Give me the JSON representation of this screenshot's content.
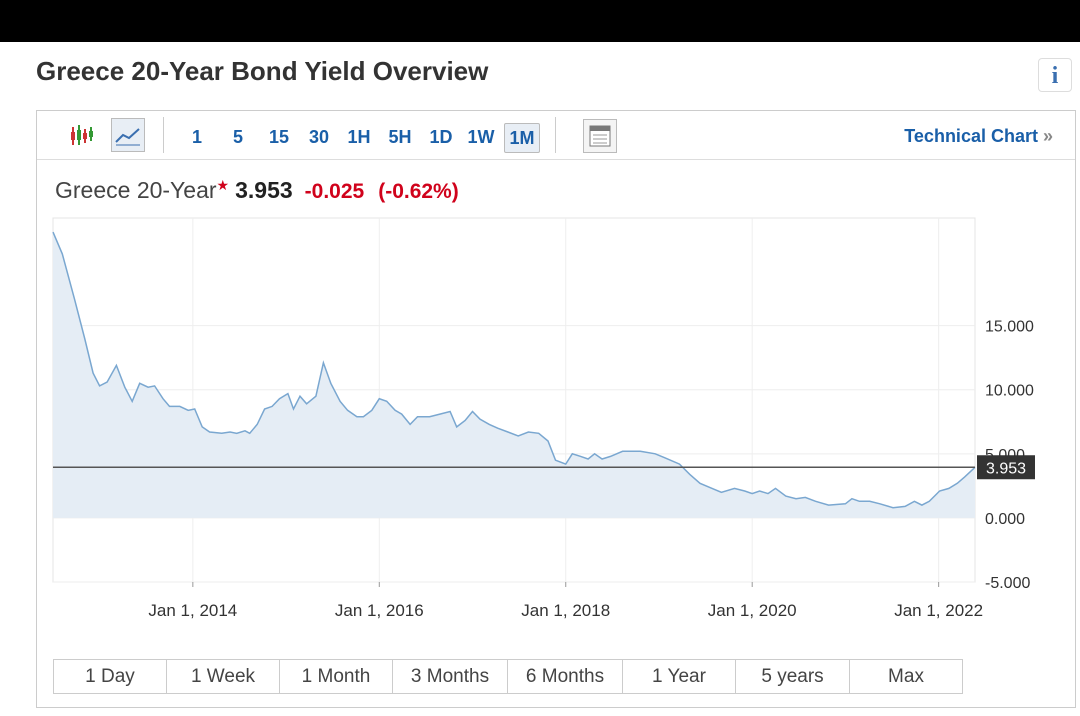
{
  "header": {
    "title": "Greece 20-Year Bond Yield Overview"
  },
  "toolbar": {
    "intervals": [
      "1",
      "5",
      "15",
      "30",
      "1H",
      "5H",
      "1D",
      "1W",
      "1M"
    ],
    "selected": "1M",
    "technical_link": "Technical Chart",
    "technical_arrow": "»"
  },
  "quote": {
    "name": "Greece 20-Year",
    "price": 3.953,
    "change": "-0.025",
    "change_pct": "(-0.62%)"
  },
  "chart_data": {
    "type": "area",
    "color": "#7aa7d0",
    "x": [
      2012.5,
      2012.6,
      2012.73,
      2012.84,
      2012.93,
      2013.0,
      2013.08,
      2013.18,
      2013.27,
      2013.35,
      2013.43,
      2013.52,
      2013.59,
      2013.68,
      2013.75,
      2013.86,
      2013.95,
      2014.02,
      2014.1,
      2014.18,
      2014.31,
      2014.4,
      2014.47,
      2014.56,
      2014.61,
      2014.69,
      2014.77,
      2014.85,
      2014.93,
      2015.02,
      2015.08,
      2015.15,
      2015.22,
      2015.32,
      2015.4,
      2015.48,
      2015.58,
      2015.66,
      2015.76,
      2015.83,
      2015.92,
      2016.0,
      2016.08,
      2016.17,
      2016.24,
      2016.33,
      2016.41,
      2016.54,
      2016.65,
      2016.76,
      2016.83,
      2016.92,
      2017.0,
      2017.08,
      2017.18,
      2017.27,
      2017.38,
      2017.49,
      2017.6,
      2017.71,
      2017.81,
      2017.89,
      2018.0,
      2018.07,
      2018.16,
      2018.24,
      2018.31,
      2018.39,
      2018.48,
      2018.61,
      2018.8,
      2018.96,
      2019.06,
      2019.22,
      2019.33,
      2019.44,
      2019.57,
      2019.67,
      2019.81,
      2019.92,
      2020.0,
      2020.08,
      2020.17,
      2020.25,
      2020.36,
      2020.47,
      2020.57,
      2020.68,
      2020.82,
      2021.0,
      2021.07,
      2021.15,
      2021.26,
      2021.37,
      2021.51,
      2021.64,
      2021.74,
      2021.82,
      2021.9,
      2022.01,
      2022.11,
      2022.2,
      2022.28,
      2022.39
    ],
    "values": [
      22.3,
      20.6,
      17.1,
      14.0,
      11.3,
      10.3,
      10.6,
      11.9,
      10.2,
      9.1,
      10.5,
      10.2,
      10.3,
      9.3,
      8.7,
      8.7,
      8.4,
      8.5,
      7.1,
      6.7,
      6.6,
      6.7,
      6.6,
      6.8,
      6.6,
      7.3,
      8.5,
      8.7,
      9.3,
      9.7,
      8.5,
      9.5,
      8.9,
      9.5,
      12.1,
      10.5,
      9.1,
      8.4,
      7.9,
      7.9,
      8.4,
      9.3,
      9.1,
      8.4,
      8.1,
      7.3,
      7.9,
      7.9,
      8.1,
      8.3,
      7.1,
      7.6,
      8.3,
      7.7,
      7.3,
      7.0,
      6.7,
      6.4,
      6.7,
      6.6,
      6.0,
      4.5,
      4.2,
      5.0,
      4.8,
      4.6,
      5.0,
      4.6,
      4.8,
      5.2,
      5.2,
      5.0,
      4.7,
      4.2,
      3.4,
      2.7,
      2.3,
      2.0,
      2.3,
      2.1,
      1.9,
      2.1,
      1.9,
      2.3,
      1.7,
      1.5,
      1.6,
      1.3,
      1.0,
      1.1,
      1.5,
      1.3,
      1.3,
      1.1,
      0.8,
      0.9,
      1.3,
      1.0,
      1.3,
      2.1,
      2.3,
      2.7,
      3.2,
      3.953
    ],
    "xlim": [
      2012.5,
      2022.39
    ],
    "xticks": [
      {
        "value": 2014,
        "label": "Jan 1, 2014"
      },
      {
        "value": 2016,
        "label": "Jan 1, 2016"
      },
      {
        "value": 2018,
        "label": "Jan 1, 2018"
      },
      {
        "value": 2020,
        "label": "Jan 1, 2020"
      },
      {
        "value": 2022,
        "label": "Jan 1, 2022"
      }
    ],
    "ylim": [
      -5,
      23.4
    ],
    "yticks": [
      {
        "value": -5,
        "label": "-5.000"
      },
      {
        "value": 0,
        "label": "0.000"
      },
      {
        "value": 5,
        "label": "5.000"
      },
      {
        "value": 10,
        "label": "10.000"
      },
      {
        "value": 15,
        "label": "15.000"
      }
    ],
    "grid": true
  },
  "ranges": [
    "1 Day",
    "1 Week",
    "1 Month",
    "3 Months",
    "6 Months",
    "1 Year",
    "5 years",
    "Max"
  ]
}
